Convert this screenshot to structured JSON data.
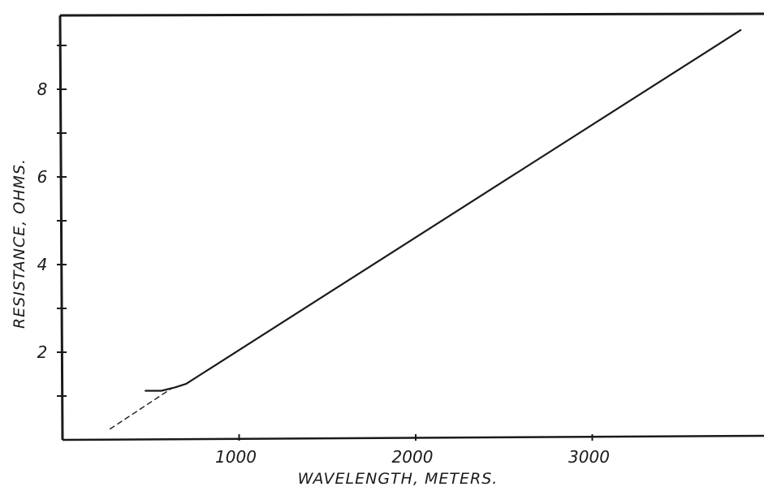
{
  "chart_data": {
    "type": "line",
    "title": "",
    "xlabel": "WAVELENGTH, METERS.",
    "ylabel": "RESISTANCE, OHMS.",
    "xlim": [
      0,
      3950
    ],
    "ylim": [
      0,
      9.3
    ],
    "x_ticks": [
      1000,
      2000,
      3000
    ],
    "x_tick_labels": [
      "1000",
      "2000",
      "3000"
    ],
    "y_ticks": [
      2,
      4,
      6,
      8
    ],
    "y_tick_labels": [
      "2",
      "4",
      "6",
      "8"
    ],
    "y_minor_ticks": [
      1,
      3,
      5,
      7,
      9
    ],
    "grid": false,
    "series": [
      {
        "style": "solid",
        "x": [
          470,
          560,
          640,
          700,
          3840
        ],
        "y": [
          1.12,
          1.12,
          1.2,
          1.28,
          9.35
        ]
      },
      {
        "style": "dashed",
        "x": [
          270,
          620
        ],
        "y": [
          0.25,
          1.18
        ]
      }
    ],
    "colors": {
      "ink": "#1a1a1a",
      "background": "#ffffff"
    }
  }
}
